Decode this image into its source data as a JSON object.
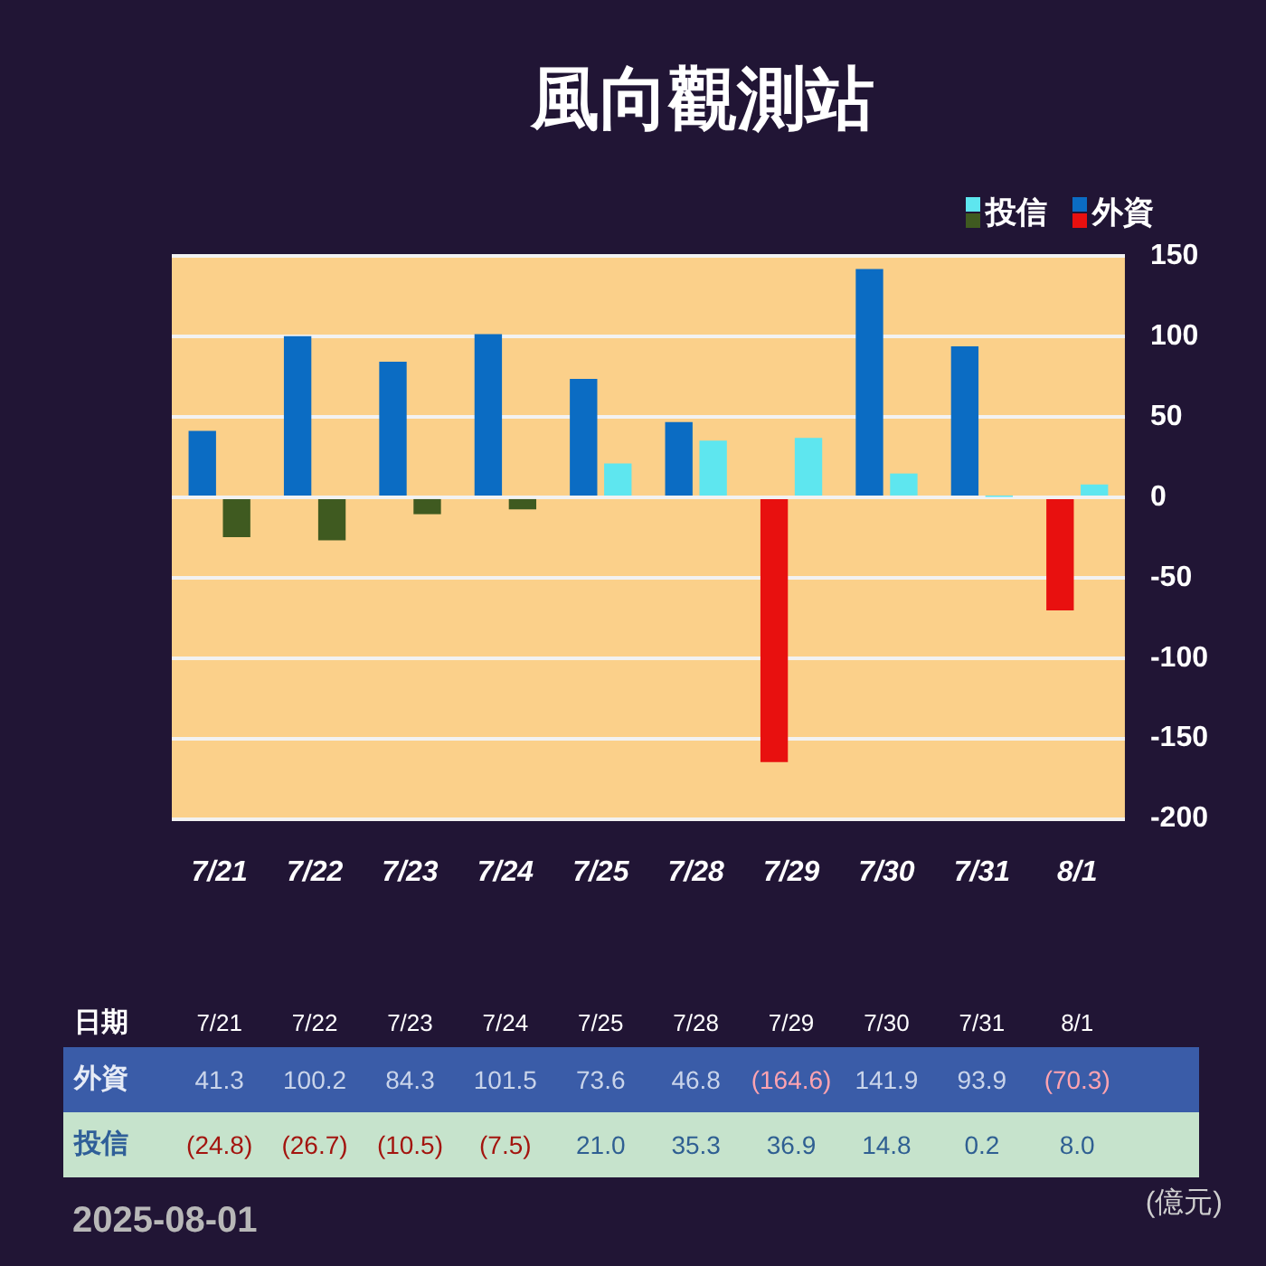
{
  "chart_data": {
    "type": "bar",
    "title": "風向觀測站",
    "xlabel": "日期",
    "categories": [
      "7/21",
      "7/22",
      "7/23",
      "7/24",
      "7/25",
      "7/28",
      "7/29",
      "7/30",
      "7/31",
      "8/1"
    ],
    "series": [
      {
        "name": "外資",
        "color": "#0b6cc3",
        "colors": [
          "#0b6cc3",
          "#0b6cc3",
          "#0b6cc3",
          "#0b6cc3",
          "#0b6cc3",
          "#0b6cc3",
          "#e8100f",
          "#0b6cc3",
          "#0b6cc3",
          "#e8100f"
        ],
        "values": [
          41.3,
          100.2,
          84.3,
          101.5,
          73.6,
          46.8,
          -164.6,
          141.9,
          93.9,
          -70.3
        ],
        "value_labels": [
          "41.3",
          "100.2",
          "84.3",
          "101.5",
          "73.6",
          "46.8",
          "(164.6)",
          "141.9",
          "93.9",
          "(70.3)"
        ]
      },
      {
        "name": "投信",
        "color": "#5ee6ef",
        "colors": [
          "#3f5a20",
          "#3f5a20",
          "#3f5a20",
          "#3f5a20",
          "#5ee6ef",
          "#5ee6ef",
          "#5ee6ef",
          "#5ee6ef",
          "#5ee6ef",
          "#5ee6ef"
        ],
        "values": [
          -24.8,
          -26.7,
          -10.5,
          -7.5,
          21.0,
          35.3,
          36.9,
          14.8,
          0.2,
          8.0
        ],
        "value_labels": [
          "(24.8)",
          "(26.7)",
          "(10.5)",
          "(7.5)",
          "21.0",
          "35.3",
          "36.9",
          "14.8",
          "0.2",
          "8.0"
        ]
      }
    ],
    "ylim": [
      -200,
      150
    ],
    "yticks": [
      150,
      100,
      50,
      0,
      -50,
      -100,
      -150,
      -200
    ],
    "grid": "y",
    "legend": "top right",
    "annotations": [
      "2025-08-01",
      "(億元)"
    ]
  }
}
